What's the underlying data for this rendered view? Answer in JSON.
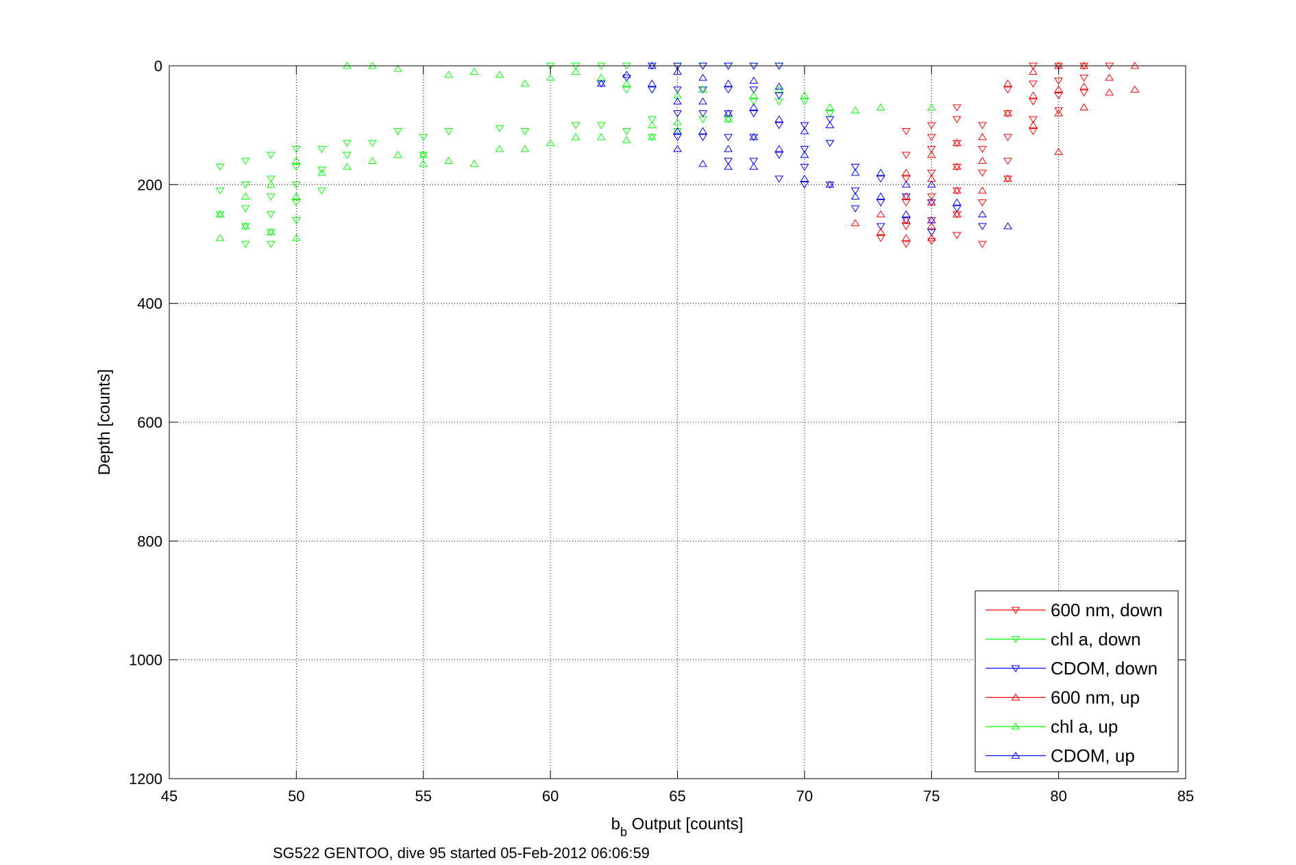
{
  "chart_data": {
    "type": "scatter",
    "xlabel_main": "b",
    "xlabel_sub": "b",
    "xlabel_rest": " Output [counts]",
    "ylabel": "Depth [counts]",
    "caption": "SG522 GENTOO, dive 95 started 05-Feb-2012 06:06:59",
    "xlim": [
      45,
      85
    ],
    "ylim": [
      0,
      1200
    ],
    "y_reversed": true,
    "grid": true,
    "legend_position": "bottom-right",
    "x_ticks": [
      "45",
      "50",
      "55",
      "60",
      "65",
      "70",
      "75",
      "80",
      "85"
    ],
    "y_ticks": [
      "0",
      "200",
      "400",
      "600",
      "800",
      "1000",
      "1200"
    ],
    "series": [
      {
        "name": "600 nm, down",
        "color": "#ff0000",
        "marker": "triangle-down",
        "x": [
          73,
          74,
          74,
          74,
          74,
          74,
          74,
          75,
          75,
          75,
          75,
          75,
          75,
          75,
          76,
          76,
          76,
          76,
          76,
          76,
          76,
          77,
          77,
          77,
          77,
          77,
          78,
          78,
          78,
          78,
          78,
          79,
          79,
          79,
          79,
          79,
          80,
          80,
          80,
          80,
          81,
          81,
          81,
          82
        ],
        "y": [
          290,
          110,
          150,
          190,
          230,
          270,
          300,
          100,
          140,
          180,
          220,
          260,
          295,
          120,
          90,
          130,
          170,
          210,
          250,
          285,
          70,
          100,
          140,
          180,
          230,
          300,
          40,
          80,
          120,
          160,
          190,
          0,
          30,
          60,
          90,
          110,
          0,
          25,
          50,
          75,
          0,
          20,
          45,
          0
        ]
      },
      {
        "name": "chl a, down",
        "color": "#00ff00",
        "marker": "triangle-down",
        "x": [
          47,
          47,
          47,
          48,
          48,
          48,
          48,
          48,
          49,
          49,
          49,
          49,
          49,
          49,
          50,
          50,
          50,
          50,
          50,
          51,
          51,
          51,
          52,
          52,
          53,
          54,
          55,
          55,
          56,
          58,
          59,
          60,
          61,
          61,
          62,
          62,
          63,
          63,
          63,
          64,
          64,
          64,
          65,
          65,
          66,
          66,
          67,
          67,
          68,
          68,
          69,
          69,
          70,
          71,
          71
        ],
        "y": [
          170,
          210,
          250,
          160,
          200,
          240,
          270,
          300,
          150,
          190,
          220,
          250,
          280,
          300,
          140,
          170,
          200,
          230,
          260,
          140,
          175,
          210,
          130,
          150,
          130,
          110,
          120,
          150,
          110,
          105,
          110,
          0,
          0,
          100,
          0,
          100,
          0,
          40,
          110,
          40,
          90,
          120,
          0,
          110,
          0,
          90,
          0,
          90,
          60,
          0,
          0,
          60,
          60,
          80,
          130
        ]
      },
      {
        "name": "CDOM, down",
        "color": "#0000ff",
        "marker": "triangle-down",
        "x": [
          62,
          63,
          64,
          64,
          65,
          65,
          65,
          65,
          66,
          66,
          66,
          66,
          67,
          67,
          67,
          67,
          67,
          68,
          68,
          68,
          68,
          68,
          69,
          69,
          69,
          69,
          69,
          70,
          70,
          70,
          70,
          71,
          71,
          71,
          72,
          72,
          72,
          73,
          73,
          73,
          74,
          74,
          75,
          75,
          76,
          77
        ],
        "y": [
          30,
          20,
          0,
          40,
          0,
          40,
          80,
          120,
          0,
          40,
          80,
          120,
          0,
          40,
          80,
          120,
          160,
          0,
          40,
          80,
          120,
          160,
          0,
          50,
          100,
          150,
          190,
          100,
          140,
          170,
          200,
          90,
          130,
          200,
          170,
          210,
          240,
          190,
          230,
          270,
          220,
          260,
          230,
          280,
          240,
          270
        ]
      },
      {
        "name": "600 nm, up",
        "color": "#ff0000",
        "marker": "triangle-up",
        "x": [
          72,
          73,
          73,
          74,
          74,
          74,
          74,
          75,
          75,
          75,
          75,
          75,
          76,
          76,
          76,
          76,
          77,
          77,
          77,
          78,
          78,
          78,
          79,
          79,
          79,
          80,
          80,
          80,
          80,
          81,
          81,
          81,
          82,
          82,
          83,
          83
        ],
        "y": [
          265,
          250,
          280,
          180,
          220,
          260,
          290,
          150,
          190,
          230,
          270,
          290,
          130,
          170,
          210,
          250,
          120,
          160,
          210,
          30,
          80,
          190,
          10,
          50,
          100,
          0,
          40,
          80,
          145,
          0,
          35,
          70,
          20,
          45,
          0,
          40
        ]
      },
      {
        "name": "chl a, up",
        "color": "#00ff00",
        "marker": "triangle-up",
        "x": [
          47,
          47,
          48,
          48,
          49,
          49,
          50,
          50,
          50,
          51,
          52,
          52,
          53,
          53,
          54,
          54,
          55,
          55,
          56,
          56,
          57,
          57,
          58,
          58,
          59,
          59,
          60,
          60,
          61,
          61,
          62,
          62,
          63,
          63,
          64,
          64,
          65,
          65,
          66,
          67,
          68,
          69,
          70,
          71,
          72,
          73,
          75
        ],
        "y": [
          250,
          290,
          220,
          270,
          200,
          280,
          160,
          220,
          290,
          180,
          0,
          170,
          0,
          160,
          5,
          150,
          150,
          165,
          15,
          160,
          10,
          165,
          15,
          140,
          30,
          140,
          20,
          130,
          10,
          120,
          20,
          120,
          30,
          125,
          100,
          120,
          50,
          95,
          40,
          90,
          50,
          40,
          50,
          70,
          75,
          70,
          70
        ]
      },
      {
        "name": "CDOM, up",
        "color": "#0000ff",
        "marker": "triangle-up",
        "x": [
          62,
          63,
          64,
          64,
          65,
          65,
          65,
          65,
          66,
          66,
          66,
          66,
          67,
          67,
          67,
          67,
          68,
          68,
          68,
          68,
          69,
          69,
          69,
          70,
          70,
          70,
          71,
          71,
          72,
          72,
          73,
          73,
          74,
          74,
          75,
          75,
          76,
          77,
          78
        ],
        "y": [
          30,
          15,
          0,
          30,
          10,
          60,
          110,
          140,
          20,
          60,
          110,
          165,
          30,
          80,
          140,
          170,
          25,
          70,
          120,
          170,
          35,
          90,
          140,
          110,
          150,
          190,
          100,
          200,
          180,
          220,
          180,
          220,
          200,
          250,
          200,
          260,
          230,
          250,
          270
        ]
      }
    ]
  }
}
